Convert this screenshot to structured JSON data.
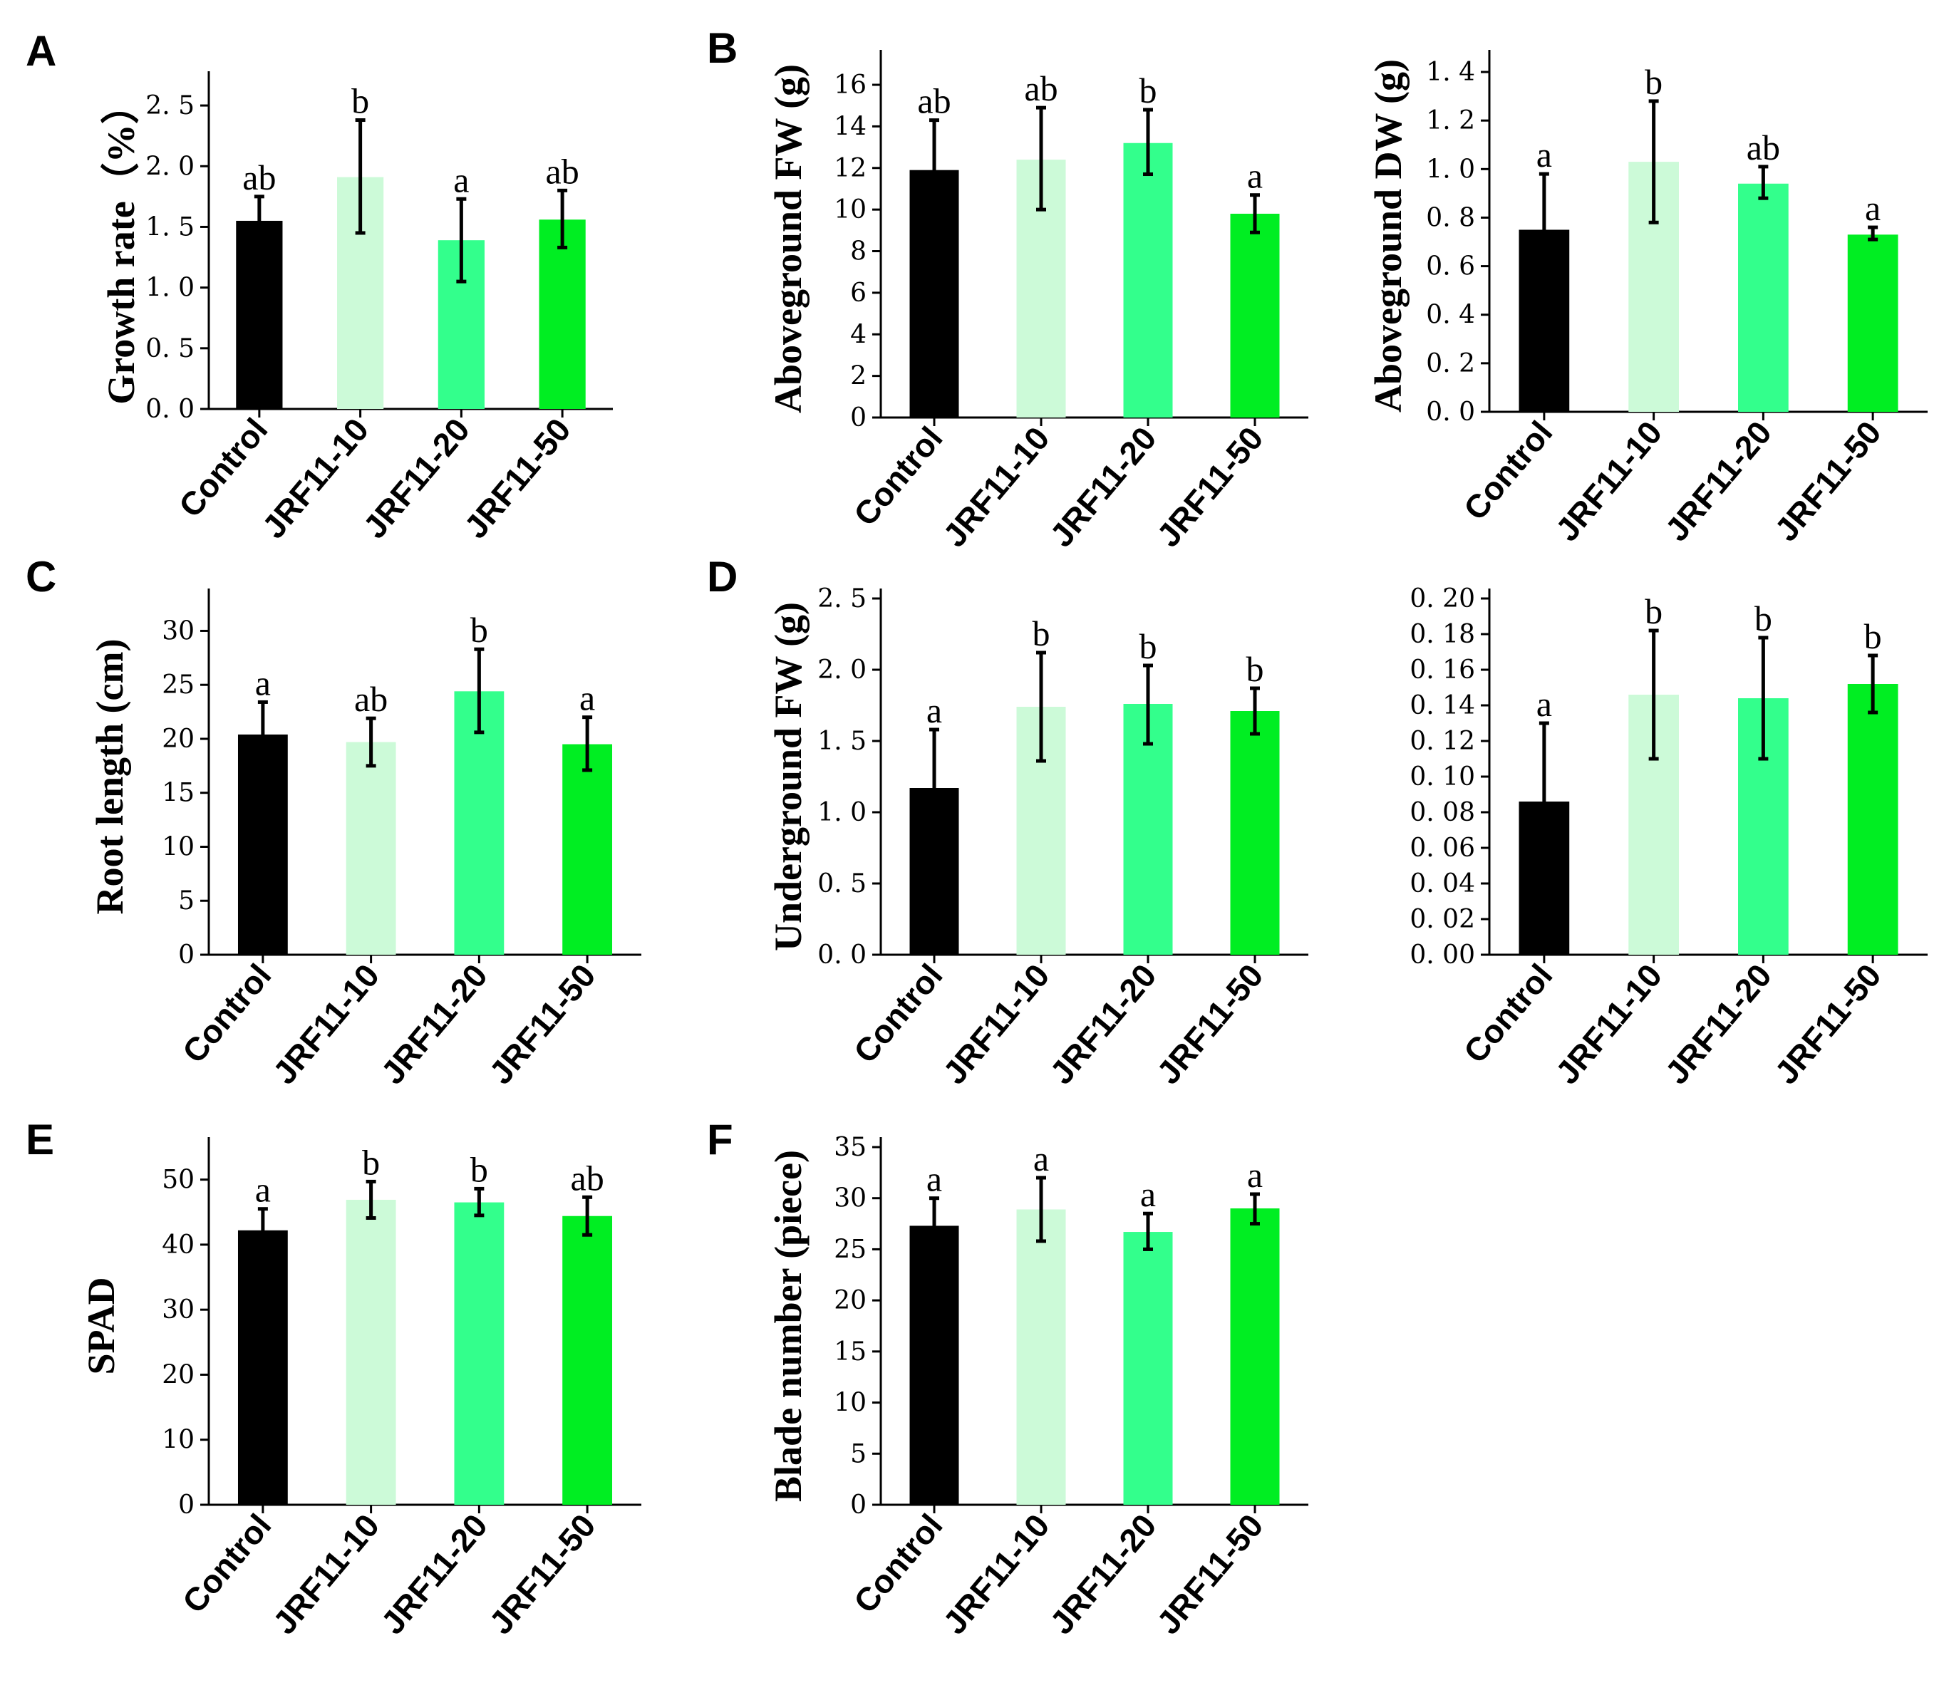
{
  "panel_letters": [
    "A",
    "B",
    "C",
    "D",
    "E",
    "F"
  ],
  "colors": [
    "#000000",
    "#ccfad8",
    "#33ff8c",
    "#00ee22"
  ],
  "chart_data": [
    {
      "id": "A",
      "type": "bar",
      "panel_letter": "A",
      "categories": [
        "Control",
        "JRF11-10",
        "JRF11-20",
        "JRF11-50"
      ],
      "values": [
        1.55,
        1.91,
        1.39,
        1.56
      ],
      "errors": [
        [
          1.36,
          1.75
        ],
        [
          1.45,
          2.38
        ],
        [
          1.05,
          1.73
        ],
        [
          1.33,
          1.8
        ]
      ],
      "letters": [
        "ab",
        "b",
        "a",
        "ab"
      ],
      "ylabel": "Growth rate（%）",
      "ylim": [
        0,
        2.7
      ],
      "yticks": [
        0,
        0.5,
        1.0,
        1.5,
        2.0,
        2.5
      ],
      "tick_labels": [
        "0. 0",
        "0. 5",
        "1. 0",
        "1. 5",
        "2. 0",
        "2. 5"
      ]
    },
    {
      "id": "B1",
      "type": "bar",
      "panel_letter": "B",
      "categories": [
        "Control",
        "JRF11-10",
        "JRF11-20",
        "JRF11-50"
      ],
      "values": [
        11.9,
        12.4,
        13.2,
        9.8
      ],
      "errors": [
        [
          9.4,
          14.3
        ],
        [
          10.0,
          14.9
        ],
        [
          11.7,
          14.8
        ],
        [
          8.9,
          10.7
        ]
      ],
      "letters": [
        "ab",
        "ab",
        "b",
        "a"
      ],
      "ylabel": "Aboveground FW (g)",
      "ylim": [
        0,
        17.2
      ],
      "yticks": [
        0,
        2,
        4,
        6,
        8,
        10,
        12,
        14,
        16
      ],
      "tick_labels": [
        "0",
        "2",
        "4",
        "6",
        "8",
        "10",
        "12",
        "14",
        "16"
      ]
    },
    {
      "id": "B2",
      "type": "bar",
      "panel_letter": "",
      "categories": [
        "Control",
        "JRF11-10",
        "JRF11-20",
        "JRF11-50"
      ],
      "values": [
        0.75,
        1.03,
        0.94,
        0.73
      ],
      "errors": [
        [
          0.5,
          0.98
        ],
        [
          0.78,
          1.28
        ],
        [
          0.88,
          1.01
        ],
        [
          0.71,
          0.76
        ]
      ],
      "letters": [
        "a",
        "b",
        "ab",
        "a"
      ],
      "ylabel": "Aboveground DW (g)",
      "ylim": [
        0,
        1.45
      ],
      "yticks": [
        0,
        0.2,
        0.4,
        0.6,
        0.8,
        1.0,
        1.2,
        1.4
      ],
      "tick_labels": [
        "0. 0",
        "0. 2",
        "0. 4",
        "0. 6",
        "0. 8",
        "1. 0",
        "1. 2",
        "1. 4"
      ]
    },
    {
      "id": "C",
      "type": "bar",
      "panel_letter": "C",
      "categories": [
        "Control",
        "JRF11-10",
        "JRF11-20",
        "JRF11-50"
      ],
      "values": [
        20.4,
        19.7,
        24.4,
        19.5
      ],
      "errors": [
        [
          17.4,
          23.4
        ],
        [
          17.5,
          21.9
        ],
        [
          20.6,
          28.3
        ],
        [
          17.1,
          22.0
        ]
      ],
      "letters": [
        "a",
        "ab",
        "b",
        "a"
      ],
      "ylabel": "Root length (cm)",
      "ylim": [
        0,
        33
      ],
      "yticks": [
        0,
        5,
        10,
        15,
        20,
        25,
        30
      ],
      "tick_labels": [
        "0",
        "5",
        "10",
        "15",
        "20",
        "25",
        "30"
      ]
    },
    {
      "id": "D1",
      "type": "bar",
      "panel_letter": "D",
      "categories": [
        "Control",
        "JRF11-10",
        "JRF11-20",
        "JRF11-50"
      ],
      "values": [
        1.17,
        1.74,
        1.76,
        1.71
      ],
      "errors": [
        [
          0.77,
          1.58
        ],
        [
          1.36,
          2.12
        ],
        [
          1.48,
          2.03
        ],
        [
          1.55,
          1.87
        ]
      ],
      "letters": [
        "a",
        "b",
        "b",
        "b"
      ],
      "ylabel": "Underground FW (g)",
      "ylim": [
        0,
        2.5
      ],
      "yticks": [
        0,
        0.5,
        1.0,
        1.5,
        2.0,
        2.5
      ],
      "tick_labels": [
        "0. 0",
        "0. 5",
        "1. 0",
        "1. 5",
        "2. 0",
        "2. 5"
      ]
    },
    {
      "id": "D2",
      "type": "bar",
      "panel_letter": "",
      "categories": [
        "Control",
        "JRF11-10",
        "JRF11-20",
        "JRF11-50"
      ],
      "values": [
        0.086,
        0.146,
        0.144,
        0.152
      ],
      "errors": [
        [
          0.042,
          0.13
        ],
        [
          0.11,
          0.182
        ],
        [
          0.11,
          0.178
        ],
        [
          0.136,
          0.168
        ]
      ],
      "letters": [
        "a",
        "b",
        "b",
        "b"
      ],
      "ylabel": "",
      "ylim": [
        0,
        0.2
      ],
      "yticks": [
        0,
        0.02,
        0.04,
        0.06,
        0.08,
        0.1,
        0.12,
        0.14,
        0.16,
        0.18,
        0.2
      ],
      "tick_labels": [
        "0. 00",
        "0. 02",
        "0. 04",
        "0. 06",
        "0. 08",
        "0. 10",
        "0. 12",
        "0. 14",
        "0. 16",
        "0. 18",
        "0. 20"
      ]
    },
    {
      "id": "E",
      "type": "bar",
      "panel_letter": "E",
      "categories": [
        "Control",
        "JRF11-10",
        "JRF11-20",
        "JRF11-50"
      ],
      "values": [
        42.2,
        46.9,
        46.5,
        44.4
      ],
      "errors": [
        [
          39.2,
          45.5
        ],
        [
          44.1,
          49.7
        ],
        [
          44.5,
          48.6
        ],
        [
          41.5,
          47.3
        ]
      ],
      "letters": [
        "a",
        "b",
        "b",
        "ab"
      ],
      "ylabel": "SPAD",
      "ylim": [
        0,
        55
      ],
      "yticks": [
        0,
        10,
        20,
        30,
        40,
        50
      ],
      "tick_labels": [
        "0",
        "10",
        "20",
        "30",
        "40",
        "50"
      ]
    },
    {
      "id": "F",
      "type": "bar",
      "panel_letter": "F",
      "categories": [
        "Control",
        "JRF11-10",
        "JRF11-20",
        "JRF11-50"
      ],
      "values": [
        27.3,
        28.9,
        26.7,
        29.0
      ],
      "errors": [
        [
          24.8,
          30.0
        ],
        [
          25.8,
          32.0
        ],
        [
          25.0,
          28.5
        ],
        [
          27.5,
          30.4
        ]
      ],
      "letters": [
        "a",
        "a",
        "a",
        "a"
      ],
      "ylabel": "Blade number (piece)",
      "ylim": [
        0,
        35
      ],
      "yticks": [
        0,
        5,
        10,
        15,
        20,
        25,
        30,
        35
      ],
      "tick_labels": [
        "0",
        "5",
        "10",
        "15",
        "20",
        "25",
        "30",
        "35"
      ]
    }
  ]
}
